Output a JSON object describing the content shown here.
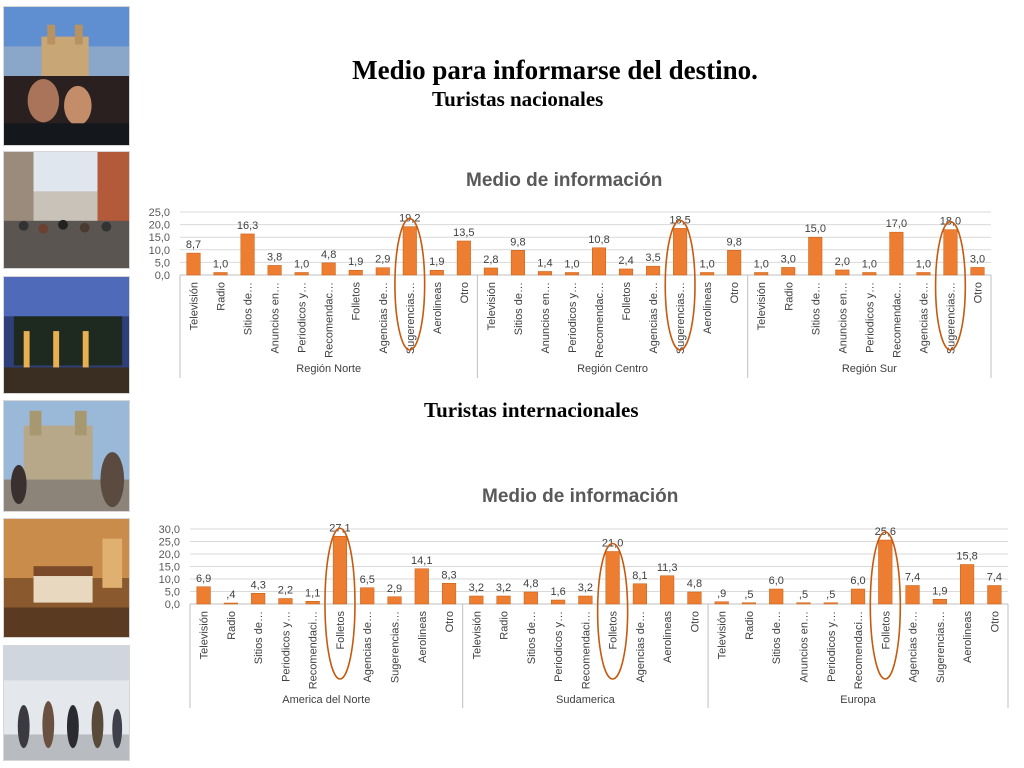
{
  "title": "Medio para informarse del destino.",
  "subtitle_national": "Turistas nacionales",
  "subtitle_international": "Turistas internacionales",
  "colors": {
    "bar": "#ed7d31",
    "bar_edge": "#c55a11",
    "highlight": "#c55a11",
    "grid": "#d9d9d9",
    "axis": "#bfbfbf",
    "text": "#595959"
  },
  "photos": [
    "Oaxaca cathedral and tourists",
    "Crowded pedestrian street",
    "Hotel courtyard at dusk",
    "Santo Domingo church plaza",
    "Hotel room interior",
    "Airport terminal with travelers"
  ],
  "chart_data": [
    {
      "type": "bar",
      "title": "Medio de información",
      "ylim": [
        0,
        25
      ],
      "yticks": [
        "0,0",
        "5,0",
        "10,0",
        "15,0",
        "20,0",
        "25,0"
      ],
      "grid": true,
      "groups": [
        {
          "name": "Región Norte",
          "categories": [
            "Televisión",
            "Radio",
            "Sitios de…",
            "Anuncios en…",
            "Periodicos y…",
            "Recomendac…",
            "Folletos",
            "Agencias de…",
            "Sugerencias…",
            "Aerolineas",
            "Otro"
          ],
          "values": [
            8.7,
            1.0,
            16.3,
            3.8,
            1.0,
            4.8,
            1.9,
            2.9,
            19.2,
            1.9,
            13.5
          ],
          "labels": [
            "8,7",
            "1,0",
            "16,3",
            "3,8",
            "1,0",
            "4,8",
            "1,9",
            "2,9",
            "19,2",
            "1,9",
            "13,5"
          ],
          "highlight": 8
        },
        {
          "name": "Región Centro",
          "categories": [
            "Televisión",
            "Sitios de…",
            "Anuncios en…",
            "Periodicos y…",
            "Recomendac…",
            "Folletos",
            "Agencias de…",
            "Sugerencias…",
            "Aerolineas",
            "Otro"
          ],
          "values": [
            2.8,
            9.8,
            1.4,
            1.0,
            10.8,
            2.4,
            3.5,
            18.5,
            1.0,
            9.8
          ],
          "labels": [
            "2,8",
            "9,8",
            "1,4",
            "1,0",
            "10,8",
            "2,4",
            "3,5",
            "18,5",
            "1,0",
            "9,8"
          ],
          "highlight": 7
        },
        {
          "name": "Región Sur",
          "categories": [
            "Televisión",
            "Radio",
            "Sitios de…",
            "Anuncios en…",
            "Periodicos y…",
            "Recomendac…",
            "Agencias de…",
            "Sugerencias…",
            "Otro"
          ],
          "values": [
            1.0,
            3.0,
            15.0,
            2.0,
            1.0,
            17.0,
            1.0,
            18.0,
            3.0
          ],
          "labels": [
            "1,0",
            "3,0",
            "15,0",
            "2,0",
            "1,0",
            "17,0",
            "1,0",
            "18,0",
            "3,0"
          ],
          "highlight": 7
        }
      ]
    },
    {
      "type": "bar",
      "title": "Medio de información",
      "ylim": [
        0,
        30
      ],
      "yticks": [
        "0,0",
        "5,0",
        "10,0",
        "15,0",
        "20,0",
        "25,0",
        "30,0"
      ],
      "grid": true,
      "groups": [
        {
          "name": "America del Norte",
          "categories": [
            "Televisión",
            "Radio",
            "Sitios de…",
            "Periodicos y…",
            "Recomendaci…",
            "Folletos",
            "Agencias de…",
            "Sugerencias…",
            "Aerolineas",
            "Otro"
          ],
          "values": [
            6.9,
            0.4,
            4.3,
            2.2,
            1.1,
            27.1,
            6.5,
            2.9,
            14.1,
            8.3
          ],
          "labels": [
            "6,9",
            ",4",
            "4,3",
            "2,2",
            "1,1",
            "27,1",
            "6,5",
            "2,9",
            "14,1",
            "8,3"
          ],
          "highlight": 5
        },
        {
          "name": "Sudamerica",
          "categories": [
            "Televisión",
            "Radio",
            "Sitios de…",
            "Periodicos y…",
            "Recomendaci…",
            "Folletos",
            "Agencias de…",
            "Aerolineas",
            "Otro"
          ],
          "values": [
            3.2,
            3.2,
            4.8,
            1.6,
            3.2,
            21.0,
            8.1,
            11.3,
            4.8
          ],
          "labels": [
            "3,2",
            "3,2",
            "4,8",
            "1,6",
            "3,2",
            "21,0",
            "8,1",
            "11,3",
            "4,8"
          ],
          "highlight": 5
        },
        {
          "name": "Europa",
          "categories": [
            "Televisión",
            "Radio",
            "Sitios de…",
            "Anuncios en…",
            "Periodicos y…",
            "Recomendaci…",
            "Folletos",
            "Agencias de…",
            "Sugerencias…",
            "Aerolineas",
            "Otro"
          ],
          "values": [
            0.9,
            0.5,
            6.0,
            0.5,
            0.5,
            6.0,
            25.6,
            7.4,
            1.9,
            15.8,
            7.4
          ],
          "labels": [
            ",9",
            ",5",
            "6,0",
            ",5",
            ",5",
            "6,0",
            "25,6",
            "7,4",
            "1,9",
            "15,8",
            "7,4"
          ],
          "highlight": 6
        }
      ]
    }
  ]
}
